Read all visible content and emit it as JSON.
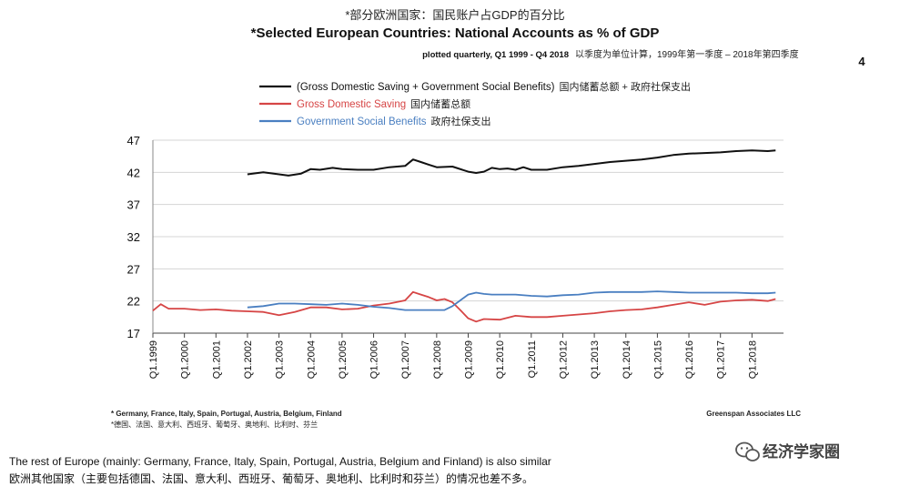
{
  "page_number": "4",
  "captions": {
    "rest_of_europe_en": "The rest of Europe (mainly: Germany, France, Italy, Spain, Portugal, Austria, Belgium and Finland) is also similar",
    "rest_of_europe_zh": "欧洲其他国家（主要包括德国、法国、意大利、西班牙、葡萄牙、奥地利、比利时和芬兰）的情况也差不多。"
  },
  "watermark": {
    "text": "经济学家圈",
    "icon": "wechat-icon"
  },
  "chart_data": {
    "type": "line",
    "title_zh": "*部分欧洲国家：国民账户占GDP的百分比",
    "title": "*Selected European Countries: National Accounts as % of GDP",
    "subtitle": "plotted quarterly, Q1 1999 - Q4 2018",
    "subtitle_zh": "以季度为单位计算，1999年第一季度 – 2018年第四季度",
    "xlabel": "",
    "ylabel": "",
    "ylim": [
      17,
      47
    ],
    "yticks": [
      17,
      22,
      27,
      32,
      37,
      42,
      47
    ],
    "xlim": [
      1999.0,
      2019.0
    ],
    "x_tick_labels": [
      "Q1.1999",
      "Q1.2000",
      "Q1.2001",
      "Q1.2002",
      "Q1.2003",
      "Q1.2004",
      "Q1.2005",
      "Q1.2006",
      "Q1.2007",
      "Q1.2008",
      "Q1.2009",
      "Q1.2010",
      "Q1.2011",
      "Q1.2012",
      "Q1.2013",
      "Q1.2014",
      "Q1.2015",
      "Q1.2016",
      "Q1.2017",
      "Q1.2018"
    ],
    "x_tick_values": [
      1999,
      2000,
      2001,
      2002,
      2003,
      2004,
      2005,
      2006,
      2007,
      2008,
      2009,
      2010,
      2011,
      2012,
      2013,
      2014,
      2015,
      2016,
      2017,
      2018
    ],
    "grid": true,
    "legend": "top",
    "footnote": "* Germany, France, Italy, Spain, Portugal, Austria, Belgium, Finland",
    "footnote_zh": "*德国、法国、意大利、西班牙、葡萄牙、奥地利、比利时、芬兰",
    "source": "Greenspan Associates LLC",
    "series": [
      {
        "name": "(Gross Domestic Saving + Government Social Benefits)",
        "name_zh": "国内储蓄总额 + 政府社保支出",
        "color": "#111111",
        "x": [
          2002.0,
          2002.5,
          2003.0,
          2003.3,
          2003.7,
          2004.0,
          2004.3,
          2004.7,
          2005.0,
          2005.5,
          2006.0,
          2006.5,
          2007.0,
          2007.25,
          2007.5,
          2007.75,
          2008.0,
          2008.5,
          2009.0,
          2009.25,
          2009.5,
          2009.75,
          2010.0,
          2010.25,
          2010.5,
          2010.75,
          2011.0,
          2011.5,
          2012.0,
          2012.5,
          2013.0,
          2013.5,
          2014.0,
          2014.5,
          2015.0,
          2015.5,
          2016.0,
          2016.5,
          2017.0,
          2017.5,
          2018.0,
          2018.5,
          2018.75
        ],
        "y": [
          41.7,
          42.0,
          41.7,
          41.5,
          41.8,
          42.5,
          42.4,
          42.7,
          42.5,
          42.4,
          42.4,
          42.8,
          43.0,
          44.0,
          43.6,
          43.2,
          42.8,
          42.9,
          42.1,
          41.9,
          42.1,
          42.7,
          42.5,
          42.6,
          42.4,
          42.8,
          42.4,
          42.4,
          42.8,
          43.0,
          43.3,
          43.6,
          43.8,
          44.0,
          44.3,
          44.7,
          44.9,
          45.0,
          45.1,
          45.3,
          45.4,
          45.3,
          45.4
        ]
      },
      {
        "name": "Gross Domestic Saving",
        "name_zh": "国内储蓄总额",
        "color": "#d64545",
        "x": [
          1999.0,
          1999.25,
          1999.5,
          2000.0,
          2000.5,
          2001.0,
          2001.5,
          2002.0,
          2002.5,
          2003.0,
          2003.5,
          2004.0,
          2004.5,
          2005.0,
          2005.5,
          2006.0,
          2006.5,
          2007.0,
          2007.25,
          2007.5,
          2007.75,
          2008.0,
          2008.25,
          2008.5,
          2008.75,
          2009.0,
          2009.25,
          2009.5,
          2010.0,
          2010.5,
          2011.0,
          2011.5,
          2012.0,
          2012.5,
          2013.0,
          2013.5,
          2014.0,
          2014.5,
          2015.0,
          2015.5,
          2016.0,
          2016.5,
          2017.0,
          2017.5,
          2018.0,
          2018.5,
          2018.75
        ],
        "y": [
          20.5,
          21.5,
          20.8,
          20.8,
          20.6,
          20.7,
          20.5,
          20.4,
          20.3,
          19.8,
          20.3,
          21.0,
          21.0,
          20.7,
          20.8,
          21.3,
          21.6,
          22.1,
          23.4,
          23.0,
          22.6,
          22.1,
          22.3,
          21.8,
          20.6,
          19.3,
          18.8,
          19.2,
          19.1,
          19.7,
          19.5,
          19.5,
          19.7,
          19.9,
          20.1,
          20.4,
          20.6,
          20.7,
          21.0,
          21.4,
          21.8,
          21.4,
          21.9,
          22.1,
          22.2,
          22.0,
          22.3
        ]
      },
      {
        "name": "Government Social Benefits",
        "name_zh": "政府社保支出",
        "color": "#4a7fc1",
        "x": [
          2002.0,
          2002.5,
          2003.0,
          2003.5,
          2004.0,
          2004.5,
          2005.0,
          2005.5,
          2006.0,
          2006.5,
          2007.0,
          2007.5,
          2008.0,
          2008.25,
          2008.5,
          2008.75,
          2009.0,
          2009.25,
          2009.5,
          2009.75,
          2010.0,
          2010.5,
          2011.0,
          2011.5,
          2012.0,
          2012.5,
          2013.0,
          2013.5,
          2014.0,
          2014.5,
          2015.0,
          2015.5,
          2016.0,
          2016.5,
          2017.0,
          2017.5,
          2018.0,
          2018.5,
          2018.75
        ],
        "y": [
          21.0,
          21.2,
          21.6,
          21.6,
          21.5,
          21.4,
          21.6,
          21.4,
          21.1,
          20.9,
          20.6,
          20.6,
          20.6,
          20.6,
          21.2,
          22.1,
          23.0,
          23.3,
          23.1,
          23.0,
          23.0,
          23.0,
          22.8,
          22.7,
          22.9,
          23.0,
          23.3,
          23.4,
          23.4,
          23.4,
          23.5,
          23.4,
          23.3,
          23.3,
          23.3,
          23.3,
          23.2,
          23.2,
          23.3
        ]
      }
    ]
  }
}
